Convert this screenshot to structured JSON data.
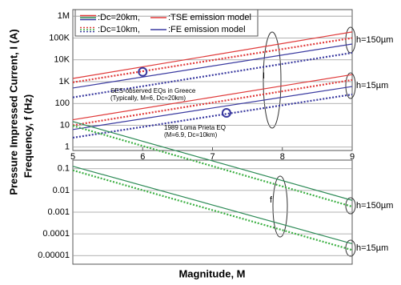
{
  "chart_data": [
    {
      "type": "line",
      "ylabel": "Pressure Impressed Current, I (A)",
      "xlim": [
        5,
        9
      ],
      "xticks": [
        5,
        6,
        7,
        8,
        9
      ],
      "log_y": true,
      "grid": true,
      "ylim": [
        0.7,
        2000000
      ],
      "yticks": [
        1,
        10,
        100,
        {
          "value": 1000,
          "label": "1K"
        },
        {
          "value": 10000,
          "label": "10K"
        },
        {
          "value": 100000,
          "label": "100K"
        },
        {
          "value": 1000000,
          "label": "1M"
        }
      ],
      "x": [
        5,
        9
      ],
      "series": [
        {
          "color": "#e03a3a",
          "style": "solid",
          "values": [
            1400,
            190000
          ]
        },
        {
          "color": "#e03a3a",
          "style": "dotted",
          "values": [
            930,
            100000
          ]
        },
        {
          "color": "#3a3aa0",
          "style": "solid",
          "values": [
            510,
            53000
          ]
        },
        {
          "color": "#3a3aa0",
          "style": "dotted",
          "values": [
            190,
            21000
          ]
        },
        {
          "color": "#e03a3a",
          "style": "solid",
          "values": [
            18,
            2100
          ]
        },
        {
          "color": "#e03a3a",
          "style": "dotted",
          "values": [
            10,
            1200
          ]
        },
        {
          "color": "#3a3aa0",
          "style": "solid",
          "values": [
            6.4,
            600
          ]
        },
        {
          "color": "#3a3aa0",
          "style": "dotted",
          "values": [
            2.7,
            260
          ]
        }
      ],
      "markers": {
        "color": "#3a3aa0",
        "x": [
          6,
          7.2
        ],
        "values": [
          2800,
          37
        ]
      },
      "legend": [
        {
          "label": ":Dc=20km,",
          "style": "solid",
          "colors": [
            "#e03a3a",
            "#2e8b57",
            "#3a3aa0"
          ]
        },
        {
          "label": ":TSE emission model",
          "style": "solid",
          "colors": [
            "#e03a3a"
          ]
        },
        {
          "label": ":Dc=10km,",
          "style": "dotted",
          "colors": [
            "#e03a3a",
            "#3cb043",
            "#3a3aa0"
          ]
        },
        {
          "label": ":FE emission model",
          "style": "solid",
          "colors": [
            "#3a3aa0"
          ]
        }
      ],
      "annotations": [
        "I",
        "h=150µm",
        "h=15µm",
        "SES-observed EQs in Greece",
        "(Typically, M=6, Dc=20km)",
        "1989 Loma Prieta EQ",
        "(M=6.9, Dc=10km)"
      ]
    },
    {
      "type": "line",
      "ylabel": "Frequency, f (Hz)",
      "xlabel": "Magnitude, M",
      "xlim": [
        5,
        9
      ],
      "log_y": true,
      "grid": true,
      "ylim": [
        4e-06,
        0.25
      ],
      "yticks": [
        0.1,
        0.01,
        0.001,
        0.0001,
        1e-05
      ],
      "x": [
        5,
        9
      ],
      "series": [
        {
          "color": "#2e8b57",
          "style": "solid",
          "values": [
            15,
            0.0035
          ]
        },
        {
          "color": "#3cb043",
          "style": "dotted",
          "values": [
            9.6,
            0.0018
          ]
        },
        {
          "color": "#2e8b57",
          "style": "solid",
          "values": [
            0.13,
            3.5e-05
          ]
        },
        {
          "color": "#3cb043",
          "style": "dotted",
          "values": [
            0.085,
            1.8e-05
          ]
        }
      ],
      "annotations": [
        "f",
        "h=150µm",
        "h=15µm"
      ]
    }
  ]
}
